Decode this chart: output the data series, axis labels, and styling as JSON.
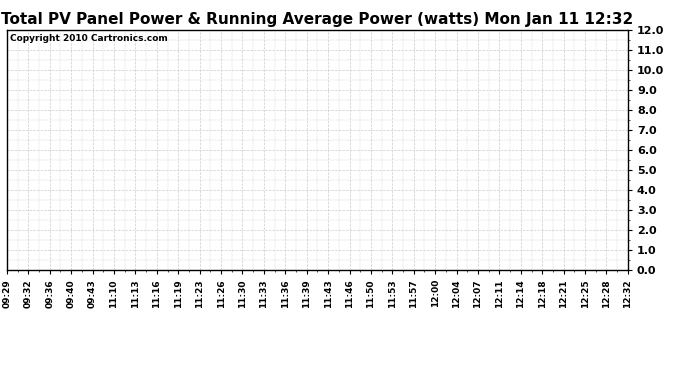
{
  "title": "Total PV Panel Power & Running Average Power (watts) Mon Jan 11 12:32",
  "copyright_text": "Copyright 2010 Cartronics.com",
  "ylim": [
    0.0,
    12.0
  ],
  "yticks": [
    0.0,
    1.0,
    2.0,
    3.0,
    4.0,
    5.0,
    6.0,
    7.0,
    8.0,
    9.0,
    10.0,
    11.0,
    12.0
  ],
  "ytick_labels": [
    "0.0",
    "1.0",
    "2.0",
    "3.0",
    "4.0",
    "5.0",
    "6.0",
    "7.0",
    "8.0",
    "9.0",
    "10.0",
    "11.0",
    "12.0"
  ],
  "xtick_labels": [
    "09:29",
    "09:32",
    "09:36",
    "09:40",
    "09:43",
    "11:10",
    "11:13",
    "11:16",
    "11:19",
    "11:23",
    "11:26",
    "11:30",
    "11:33",
    "11:36",
    "11:39",
    "11:43",
    "11:46",
    "11:50",
    "11:53",
    "11:57",
    "12:00",
    "12:04",
    "12:07",
    "12:11",
    "12:14",
    "12:18",
    "12:21",
    "12:25",
    "12:28",
    "12:32"
  ],
  "grid_color": "#cccccc",
  "grid_linestyle": "--",
  "grid_linewidth": 0.5,
  "background_color": "#ffffff",
  "border_color": "#000000",
  "title_fontsize": 11,
  "copyright_fontsize": 6.5,
  "tick_fontsize": 6.5,
  "ytick_fontsize": 8
}
